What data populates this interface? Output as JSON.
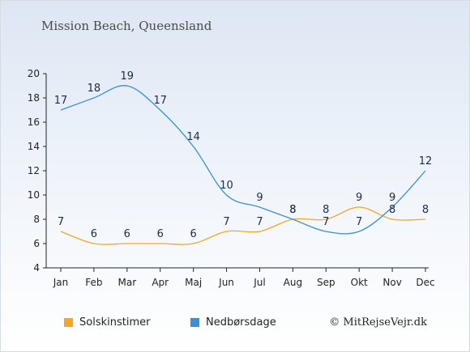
{
  "header": {
    "title": "Mission Beach, Queensland"
  },
  "footer": {
    "copyright": "© MitRejseVejr.dk"
  },
  "colors": {
    "sun": "#f5a623",
    "rain": "#3a8fd9",
    "axis": "#222222"
  },
  "chart_data": {
    "type": "line",
    "title": "Mission Beach, Queensland",
    "categories": [
      "Jan",
      "Feb",
      "Mar",
      "Apr",
      "Maj",
      "Jun",
      "Jul",
      "Aug",
      "Sep",
      "Okt",
      "Nov",
      "Dec"
    ],
    "series": [
      {
        "name": "Solskinstimer",
        "color": "#f5a623",
        "values": [
          7,
          6,
          6,
          6,
          6,
          7,
          7,
          8,
          8,
          9,
          8,
          8
        ]
      },
      {
        "name": "Nedbørsdage",
        "color": "#3a8fd9",
        "values": [
          17,
          18,
          19,
          17,
          14,
          10,
          9,
          8,
          7,
          7,
          9,
          12
        ]
      }
    ],
    "ylim": [
      4,
      20
    ],
    "yticks": [
      4,
      6,
      8,
      10,
      12,
      14,
      16,
      18,
      20
    ],
    "grid": false,
    "legend_position": "bottom"
  }
}
